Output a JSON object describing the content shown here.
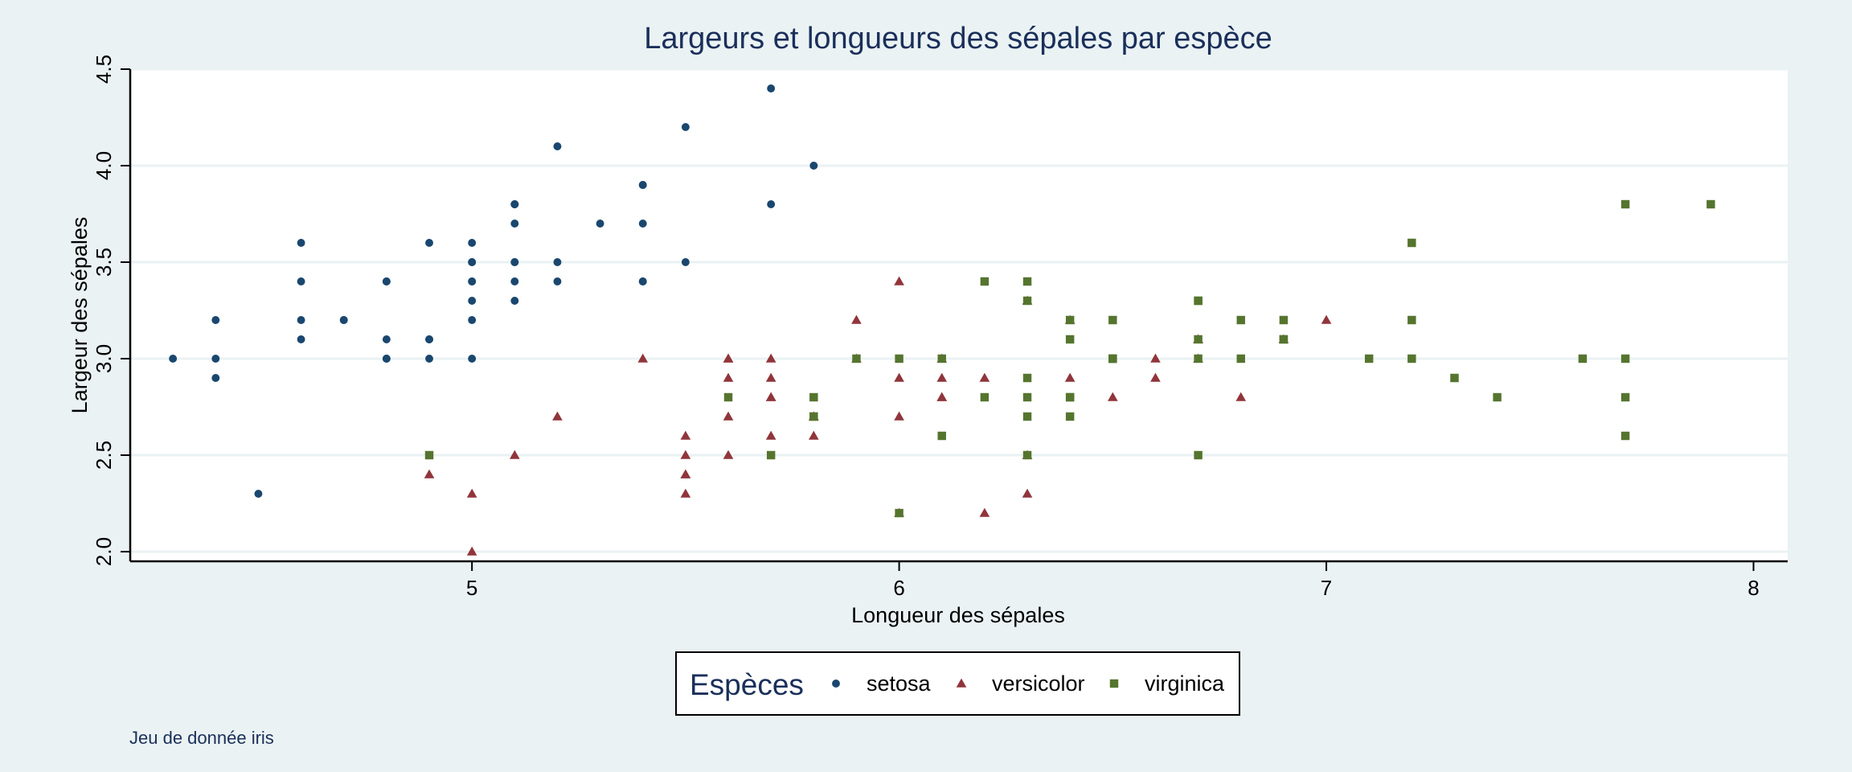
{
  "chart_data": {
    "type": "scatter",
    "title": "Largeurs et longueurs des sépales par espèce",
    "xlabel": "Longueur des sépales",
    "ylabel": "Largeur des sépales",
    "xlim": [
      4.2,
      8.08
    ],
    "ylim": [
      1.95,
      4.5
    ],
    "x_ticks": [
      5,
      6,
      7,
      8
    ],
    "y_ticks": [
      2.0,
      2.5,
      3.0,
      3.5,
      4.0,
      4.5
    ],
    "x_tick_labels": [
      "5",
      "6",
      "7",
      "8"
    ],
    "y_tick_labels": [
      "2.0",
      "2.5",
      "3.0",
      "3.5",
      "4.0",
      "4.5"
    ],
    "grid": true,
    "legend": {
      "title": "Espèces",
      "placement": "bottom-center"
    },
    "note": "Jeu de donnée iris",
    "series": [
      {
        "name": "setosa",
        "marker": "circle",
        "color": "#1a476f",
        "points": [
          [
            5.1,
            3.5
          ],
          [
            4.9,
            3.0
          ],
          [
            4.7,
            3.2
          ],
          [
            4.6,
            3.1
          ],
          [
            5.0,
            3.6
          ],
          [
            5.4,
            3.9
          ],
          [
            4.6,
            3.4
          ],
          [
            5.0,
            3.4
          ],
          [
            4.4,
            2.9
          ],
          [
            4.9,
            3.1
          ],
          [
            5.4,
            3.7
          ],
          [
            4.8,
            3.4
          ],
          [
            4.8,
            3.0
          ],
          [
            4.3,
            3.0
          ],
          [
            5.8,
            4.0
          ],
          [
            5.7,
            4.4
          ],
          [
            5.4,
            3.9
          ],
          [
            5.1,
            3.5
          ],
          [
            5.7,
            3.8
          ],
          [
            5.1,
            3.8
          ],
          [
            5.4,
            3.4
          ],
          [
            5.1,
            3.7
          ],
          [
            4.6,
            3.6
          ],
          [
            5.1,
            3.3
          ],
          [
            4.8,
            3.4
          ],
          [
            5.0,
            3.0
          ],
          [
            5.0,
            3.4
          ],
          [
            5.2,
            3.5
          ],
          [
            5.2,
            3.4
          ],
          [
            4.7,
            3.2
          ],
          [
            4.8,
            3.1
          ],
          [
            5.4,
            3.4
          ],
          [
            5.2,
            4.1
          ],
          [
            5.5,
            4.2
          ],
          [
            4.9,
            3.1
          ],
          [
            5.0,
            3.2
          ],
          [
            5.5,
            3.5
          ],
          [
            4.9,
            3.6
          ],
          [
            4.4,
            3.0
          ],
          [
            5.1,
            3.4
          ],
          [
            5.0,
            3.5
          ],
          [
            4.5,
            2.3
          ],
          [
            4.4,
            3.2
          ],
          [
            5.0,
            3.5
          ],
          [
            5.1,
            3.8
          ],
          [
            4.8,
            3.0
          ],
          [
            5.1,
            3.8
          ],
          [
            4.6,
            3.2
          ],
          [
            5.3,
            3.7
          ],
          [
            5.0,
            3.3
          ]
        ]
      },
      {
        "name": "versicolor",
        "marker": "triangle",
        "color": "#90353b",
        "points": [
          [
            7.0,
            3.2
          ],
          [
            6.4,
            3.2
          ],
          [
            6.9,
            3.1
          ],
          [
            5.5,
            2.3
          ],
          [
            6.5,
            2.8
          ],
          [
            5.7,
            2.8
          ],
          [
            6.3,
            3.3
          ],
          [
            4.9,
            2.4
          ],
          [
            6.6,
            2.9
          ],
          [
            5.2,
            2.7
          ],
          [
            5.0,
            2.0
          ],
          [
            5.9,
            3.0
          ],
          [
            6.0,
            2.2
          ],
          [
            6.1,
            2.9
          ],
          [
            5.6,
            2.9
          ],
          [
            6.7,
            3.1
          ],
          [
            5.6,
            3.0
          ],
          [
            5.8,
            2.7
          ],
          [
            6.2,
            2.2
          ],
          [
            5.6,
            2.5
          ],
          [
            5.9,
            3.2
          ],
          [
            6.1,
            2.8
          ],
          [
            6.3,
            2.5
          ],
          [
            6.1,
            2.8
          ],
          [
            6.4,
            2.9
          ],
          [
            6.6,
            3.0
          ],
          [
            6.8,
            2.8
          ],
          [
            6.7,
            3.0
          ],
          [
            6.0,
            2.9
          ],
          [
            5.7,
            2.6
          ],
          [
            5.5,
            2.4
          ],
          [
            5.5,
            2.4
          ],
          [
            5.8,
            2.7
          ],
          [
            6.0,
            2.7
          ],
          [
            5.4,
            3.0
          ],
          [
            6.0,
            3.4
          ],
          [
            6.7,
            3.1
          ],
          [
            6.3,
            2.3
          ],
          [
            5.6,
            3.0
          ],
          [
            5.5,
            2.5
          ],
          [
            5.5,
            2.6
          ],
          [
            6.1,
            3.0
          ],
          [
            5.8,
            2.6
          ],
          [
            5.0,
            2.3
          ],
          [
            5.6,
            2.7
          ],
          [
            5.7,
            3.0
          ],
          [
            5.7,
            2.9
          ],
          [
            6.2,
            2.9
          ],
          [
            5.1,
            2.5
          ],
          [
            5.7,
            2.8
          ]
        ]
      },
      {
        "name": "virginica",
        "marker": "square",
        "color": "#55752f",
        "points": [
          [
            6.3,
            3.3
          ],
          [
            5.8,
            2.7
          ],
          [
            7.1,
            3.0
          ],
          [
            6.3,
            2.9
          ],
          [
            6.5,
            3.0
          ],
          [
            7.6,
            3.0
          ],
          [
            4.9,
            2.5
          ],
          [
            7.3,
            2.9
          ],
          [
            6.7,
            2.5
          ],
          [
            7.2,
            3.6
          ],
          [
            6.5,
            3.2
          ],
          [
            6.4,
            2.7
          ],
          [
            6.8,
            3.0
          ],
          [
            5.7,
            2.5
          ],
          [
            5.8,
            2.8
          ],
          [
            6.4,
            3.2
          ],
          [
            6.5,
            3.0
          ],
          [
            7.7,
            3.8
          ],
          [
            7.7,
            2.6
          ],
          [
            6.0,
            2.2
          ],
          [
            6.9,
            3.2
          ],
          [
            5.6,
            2.8
          ],
          [
            7.7,
            2.8
          ],
          [
            6.3,
            2.7
          ],
          [
            6.7,
            3.3
          ],
          [
            7.2,
            3.2
          ],
          [
            6.2,
            2.8
          ],
          [
            6.1,
            3.0
          ],
          [
            6.4,
            2.8
          ],
          [
            7.2,
            3.0
          ],
          [
            7.4,
            2.8
          ],
          [
            7.9,
            3.8
          ],
          [
            6.4,
            2.8
          ],
          [
            6.3,
            2.8
          ],
          [
            6.1,
            2.6
          ],
          [
            7.7,
            3.0
          ],
          [
            6.3,
            3.4
          ],
          [
            6.4,
            3.1
          ],
          [
            6.0,
            3.0
          ],
          [
            6.9,
            3.1
          ],
          [
            6.7,
            3.1
          ],
          [
            6.9,
            3.1
          ],
          [
            5.8,
            2.7
          ],
          [
            6.8,
            3.2
          ],
          [
            6.7,
            3.3
          ],
          [
            6.7,
            3.0
          ],
          [
            6.3,
            2.5
          ],
          [
            6.5,
            3.0
          ],
          [
            6.2,
            3.4
          ],
          [
            5.9,
            3.0
          ]
        ]
      }
    ]
  }
}
